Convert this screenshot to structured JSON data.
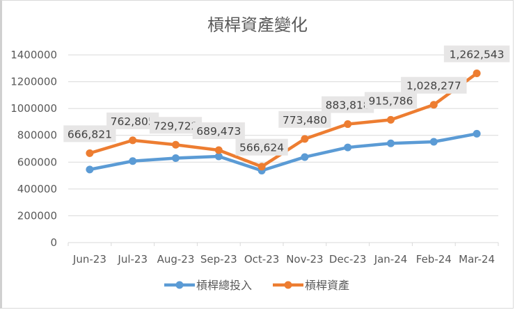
{
  "chart_data": {
    "type": "line",
    "title": "槓桿資產變化",
    "xlabel": "",
    "ylabel": "",
    "categories": [
      "Jun-23",
      "Jul-23",
      "Aug-23",
      "Sep-23",
      "Oct-23",
      "Nov-23",
      "Dec-23",
      "Jan-24",
      "Feb-24",
      "Mar-24"
    ],
    "ylim": [
      0,
      1400000
    ],
    "yticks": [
      0,
      200000,
      400000,
      600000,
      800000,
      1000000,
      1200000,
      1400000
    ],
    "grid": true,
    "legend_position": "bottom",
    "series": [
      {
        "name": "槓桿總投入",
        "color": "#5B9BD5",
        "values": [
          545000,
          608000,
          630000,
          643000,
          537000,
          638000,
          710000,
          740000,
          752000,
          812000
        ],
        "show_labels": false
      },
      {
        "name": "槓桿資產",
        "color": "#ED7D31",
        "values": [
          666821,
          762805,
          729722,
          689473,
          566624,
          773480,
          883818,
          915786,
          1028277,
          1262543
        ],
        "labels": [
          "666,821",
          "762,805",
          "729,722",
          "689,473",
          "566,624",
          "773,480",
          "883,818",
          "915,786",
          "1,028,277",
          "1,262,543"
        ],
        "show_labels": true
      }
    ]
  }
}
